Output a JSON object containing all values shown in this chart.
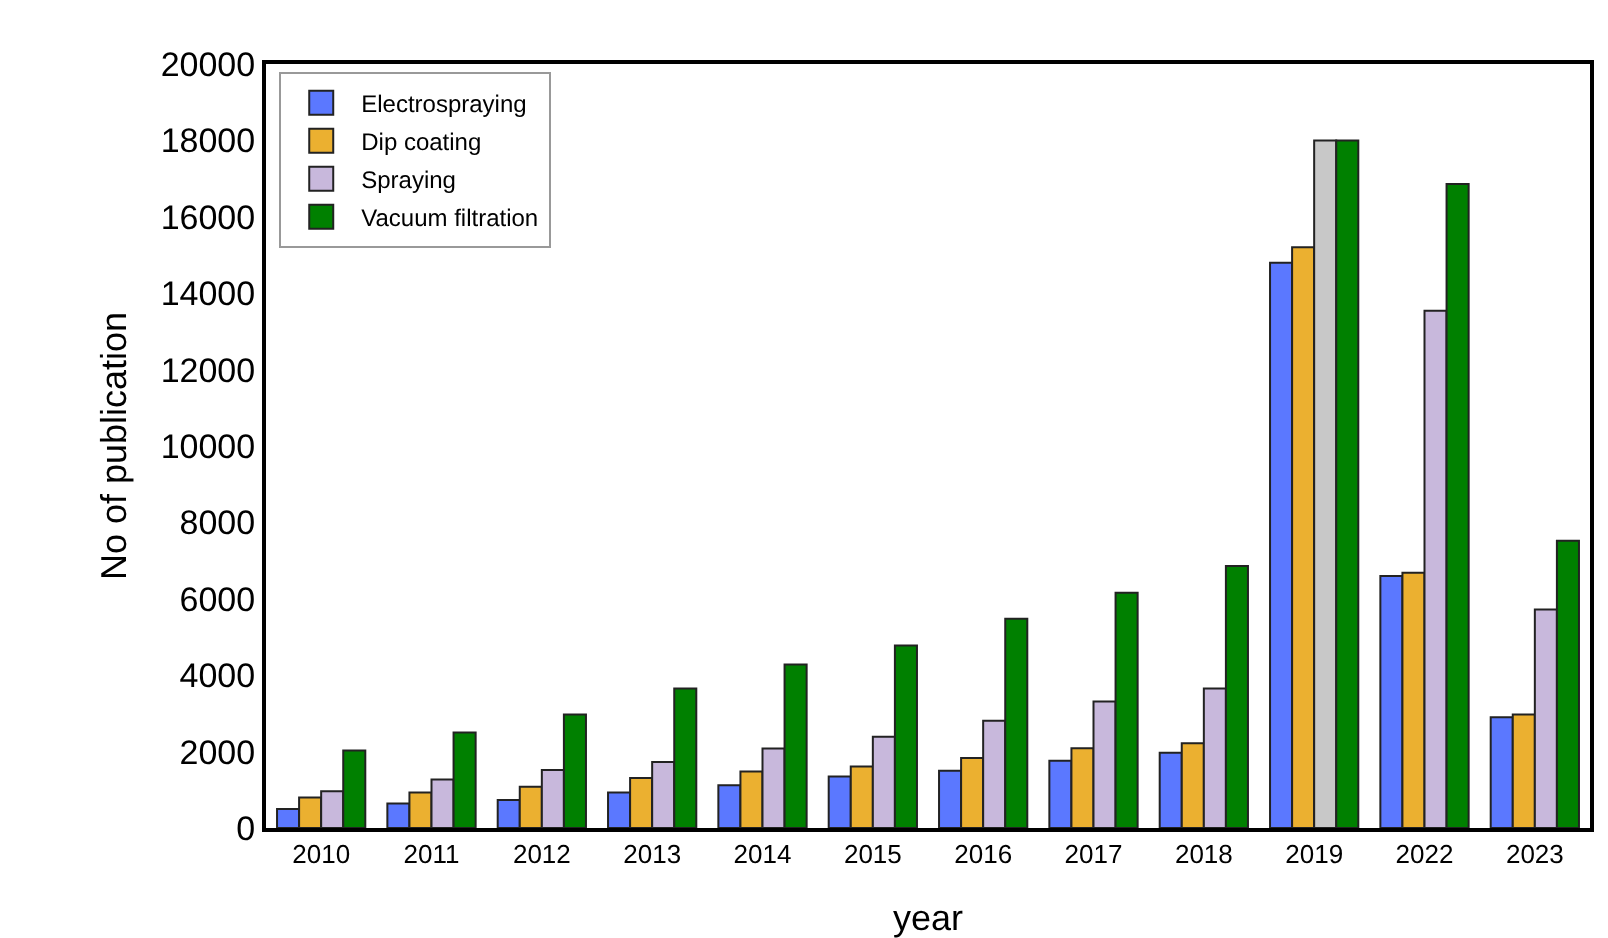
{
  "chart_data": {
    "type": "bar",
    "xlabel": "year",
    "ylabel": "No of publication",
    "categories": [
      "2010",
      "2011",
      "2012",
      "2013",
      "2014",
      "2015",
      "2016",
      "2017",
      "2018",
      "2019",
      "2022",
      "2023"
    ],
    "series": [
      {
        "name": "Electrospraying",
        "color": "#5b78ff",
        "values": [
          500,
          640,
          730,
          930,
          1120,
          1350,
          1500,
          1760,
          1970,
          14800,
          6600,
          2900
        ]
      },
      {
        "name": "Dip coating",
        "color": "#ebb030",
        "values": [
          800,
          930,
          1080,
          1310,
          1480,
          1610,
          1830,
          2090,
          2220,
          15200,
          6680,
          2970
        ]
      },
      {
        "name": "Spraying",
        "color": "#c8b8dc",
        "colors": [
          null,
          null,
          null,
          null,
          null,
          null,
          null,
          null,
          null,
          "#c8c8c8",
          null,
          null
        ],
        "values": [
          960,
          1270,
          1520,
          1730,
          2080,
          2390,
          2810,
          3310,
          3650,
          18000,
          13540,
          5720
        ]
      },
      {
        "name": "Vacuum filtration",
        "color": "#008000",
        "values": [
          2030,
          2500,
          2970,
          3650,
          4280,
          4780,
          5480,
          6160,
          6860,
          18000,
          16860,
          7520
        ]
      }
    ],
    "ylim": [
      0,
      20000
    ],
    "yticks": [
      0,
      2000,
      4000,
      6000,
      8000,
      10000,
      12000,
      14000,
      16000,
      18000,
      20000
    ],
    "grid": false,
    "legend": "top left"
  }
}
